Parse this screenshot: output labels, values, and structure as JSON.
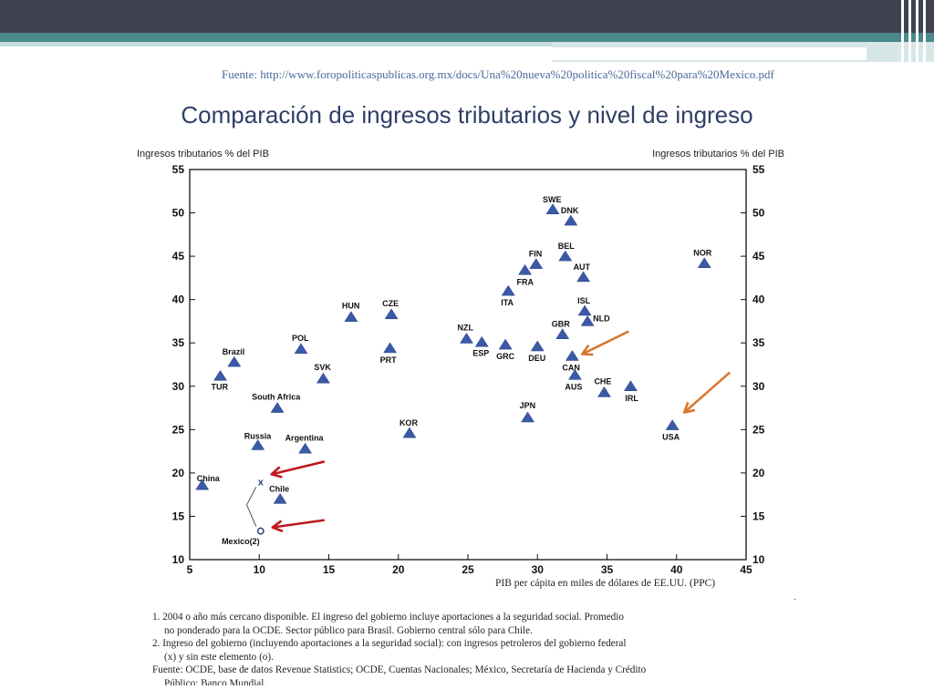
{
  "source_text": "Fuente: http://www.foropoliticaspublicas.org.mx/docs/Una%20nueva%20politica%20fiscal%20para%20Mexico.pdf",
  "slide_title": "Comparación de ingresos tributarios y nivel de ingreso",
  "chart_data": {
    "type": "scatter",
    "title": "",
    "xlabel": "PIB per cápita en miles de dólares de EE.UU. (PPC)",
    "ylabel_left": "Ingresos tributarios % del PIB",
    "ylabel_right": "Ingresos tributarios % del PIB",
    "xlim": [
      5,
      45
    ],
    "ylim": [
      10,
      55
    ],
    "xticks": [
      5,
      10,
      15,
      20,
      25,
      30,
      35,
      40,
      45
    ],
    "yticks": [
      10,
      15,
      20,
      25,
      30,
      35,
      40,
      45,
      50,
      55
    ],
    "grid": false,
    "points": [
      {
        "label": "China",
        "x": 5.9,
        "y": 18.6
      },
      {
        "label": "TUR",
        "x": 7.2,
        "y": 31.2
      },
      {
        "label": "Brazil",
        "x": 8.2,
        "y": 32.8
      },
      {
        "label": "Russia",
        "x": 9.9,
        "y": 23.2
      },
      {
        "label": "Chile",
        "x": 11.5,
        "y": 17.0
      },
      {
        "label": "South Africa",
        "x": 11.3,
        "y": 27.5
      },
      {
        "label": "POL",
        "x": 13.0,
        "y": 34.3
      },
      {
        "label": "Argentina",
        "x": 13.3,
        "y": 22.8
      },
      {
        "label": "SVK",
        "x": 14.6,
        "y": 30.9
      },
      {
        "label": "HUN",
        "x": 16.6,
        "y": 38.0
      },
      {
        "label": "CZE",
        "x": 19.5,
        "y": 38.3
      },
      {
        "label": "PRT",
        "x": 19.4,
        "y": 34.4
      },
      {
        "label": "KOR",
        "x": 20.8,
        "y": 24.6
      },
      {
        "label": "NZL",
        "x": 24.9,
        "y": 35.5
      },
      {
        "label": "ESP",
        "x": 26.0,
        "y": 35.1
      },
      {
        "label": "GRC",
        "x": 27.7,
        "y": 34.8
      },
      {
        "label": "ITA",
        "x": 27.9,
        "y": 41.0
      },
      {
        "label": "FRA",
        "x": 29.1,
        "y": 43.4
      },
      {
        "label": "FIN",
        "x": 29.9,
        "y": 44.1
      },
      {
        "label": "DEU",
        "x": 30.0,
        "y": 34.6
      },
      {
        "label": "JPN",
        "x": 29.3,
        "y": 26.4
      },
      {
        "label": "SWE",
        "x": 31.1,
        "y": 50.4
      },
      {
        "label": "BEL",
        "x": 32.0,
        "y": 45.0
      },
      {
        "label": "GBR",
        "x": 31.8,
        "y": 36.0
      },
      {
        "label": "DNK",
        "x": 32.4,
        "y": 49.1
      },
      {
        "label": "CAN",
        "x": 32.5,
        "y": 33.5
      },
      {
        "label": "AUS",
        "x": 32.7,
        "y": 31.3
      },
      {
        "label": "AUT",
        "x": 33.3,
        "y": 42.6
      },
      {
        "label": "ISL",
        "x": 33.4,
        "y": 38.7
      },
      {
        "label": "NLD",
        "x": 33.6,
        "y": 37.5
      },
      {
        "label": "CHE",
        "x": 34.8,
        "y": 29.3
      },
      {
        "label": "IRL",
        "x": 36.7,
        "y": 30.0
      },
      {
        "label": "USA",
        "x": 39.7,
        "y": 25.5
      },
      {
        "label": "NOR",
        "x": 42.0,
        "y": 44.2
      }
    ],
    "mexico": {
      "label": "Mexico(2)",
      "with_oil": {
        "x": 10.1,
        "y": 19.0
      },
      "without_oil": {
        "x": 10.1,
        "y": 13.3
      }
    },
    "arrow_colors": {
      "red": "#c0171e",
      "orange": "#d9772e"
    }
  },
  "notes": [
    "1. 2004 o año más cercano disponible. El ingreso del gobierno incluye aportaciones a la seguridad social. Promedio",
    "no ponderado para la OCDE. Sector público para Brasil. Gobierno central sólo para Chile.",
    "2. Ingreso del gobierno (incluyendo aportaciones a la seguridad social): con ingresos petroleros del gobierno federal",
    "(x) y sin este elemento (o).",
    "Fuente: OCDE, base de datos Revenue Statistics; OCDE, Cuentas Nacionales; México, Secretaría de Hacienda y Crédito",
    "Público; Banco Mundial."
  ]
}
